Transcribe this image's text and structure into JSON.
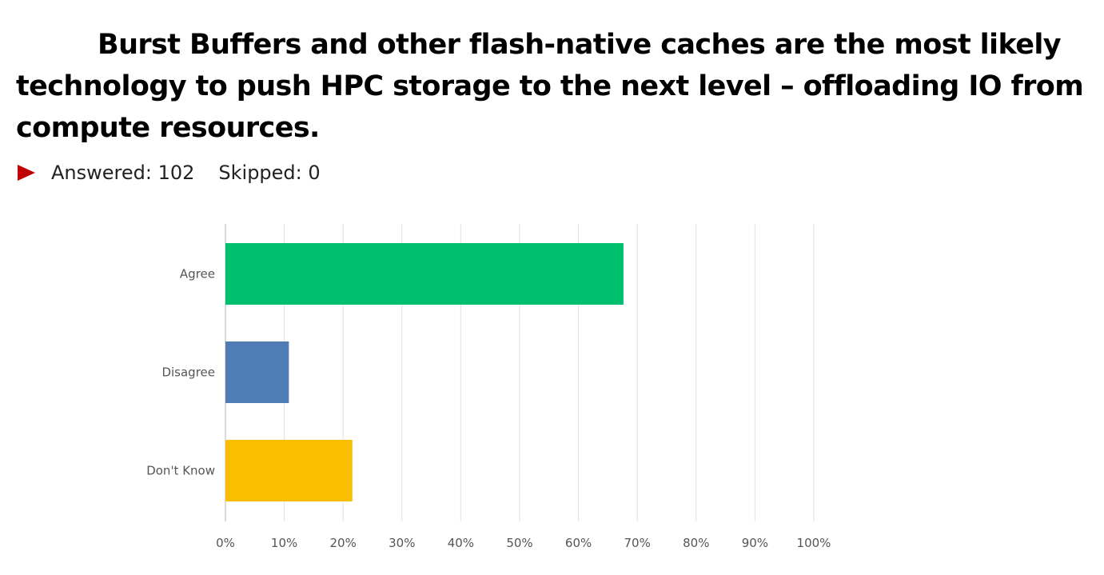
{
  "header": {
    "title": "Burst Buffers and other flash-native caches are the most likely technology to push HPC storage to the next level – offloading IO from compute resources."
  },
  "stats": {
    "answered": "Answered: 102",
    "skipped": "Skipped: 0",
    "marker_color": "#c00000"
  },
  "chart_data": {
    "type": "bar",
    "orientation": "horizontal",
    "categories": [
      "Agree",
      "Disagree",
      "Don't Know"
    ],
    "values": [
      67.65,
      10.78,
      21.57
    ],
    "colors": [
      "#00bf6f",
      "#507cb6",
      "#f9be00"
    ],
    "xlim": [
      0,
      100
    ],
    "xticks": [
      "0%",
      "10%",
      "20%",
      "30%",
      "40%",
      "50%",
      "60%",
      "70%",
      "80%",
      "90%",
      "100%"
    ],
    "grid": true,
    "title": "",
    "xlabel": "",
    "ylabel": ""
  }
}
